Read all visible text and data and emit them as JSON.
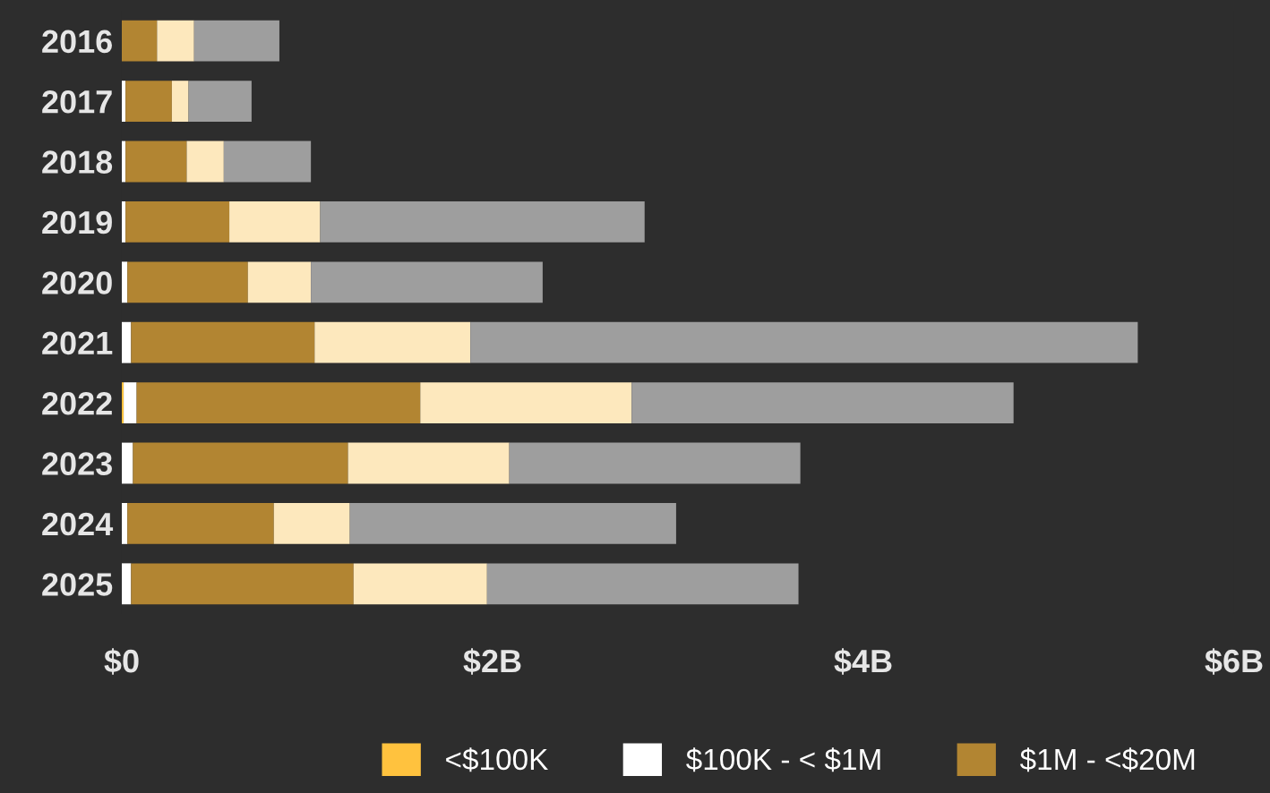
{
  "chart_data": {
    "type": "bar",
    "orientation": "horizontal",
    "stacked": true,
    "categories": [
      "2016",
      "2017",
      "2018",
      "2019",
      "2020",
      "2021",
      "2022",
      "2023",
      "2024",
      "2025"
    ],
    "series": [
      {
        "name": "<$100K",
        "color": "#ffc23e",
        "values": [
          0,
          0,
          0,
          0,
          0,
          0,
          0.01,
          0,
          0,
          0
        ]
      },
      {
        "name": "$100K - < $1M",
        "color": "#ffffff",
        "values": [
          0,
          0.02,
          0.02,
          0.02,
          0.03,
          0.05,
          0.07,
          0.06,
          0.03,
          0.05
        ]
      },
      {
        "name": "$1M - <$20M",
        "color": "#b28532",
        "values": [
          0.19,
          0.25,
          0.33,
          0.56,
          0.65,
          0.99,
          1.53,
          1.16,
          0.79,
          1.2
        ]
      },
      {
        "color": "#fde8bd",
        "values": [
          0.2,
          0.09,
          0.2,
          0.49,
          0.34,
          0.84,
          1.14,
          0.87,
          0.41,
          0.72
        ]
      },
      {
        "color": "#9e9e9e",
        "values": [
          0.46,
          0.34,
          0.47,
          1.75,
          1.25,
          3.6,
          2.06,
          1.57,
          1.76,
          1.68
        ]
      }
    ],
    "xlim": [
      0,
      6
    ],
    "xticks": [
      {
        "value": 0,
        "label": "$0"
      },
      {
        "value": 2,
        "label": "$2B"
      },
      {
        "value": 4,
        "label": "$4B"
      },
      {
        "value": 6,
        "label": "$6B"
      }
    ],
    "grid": false,
    "legend": "bottom"
  }
}
